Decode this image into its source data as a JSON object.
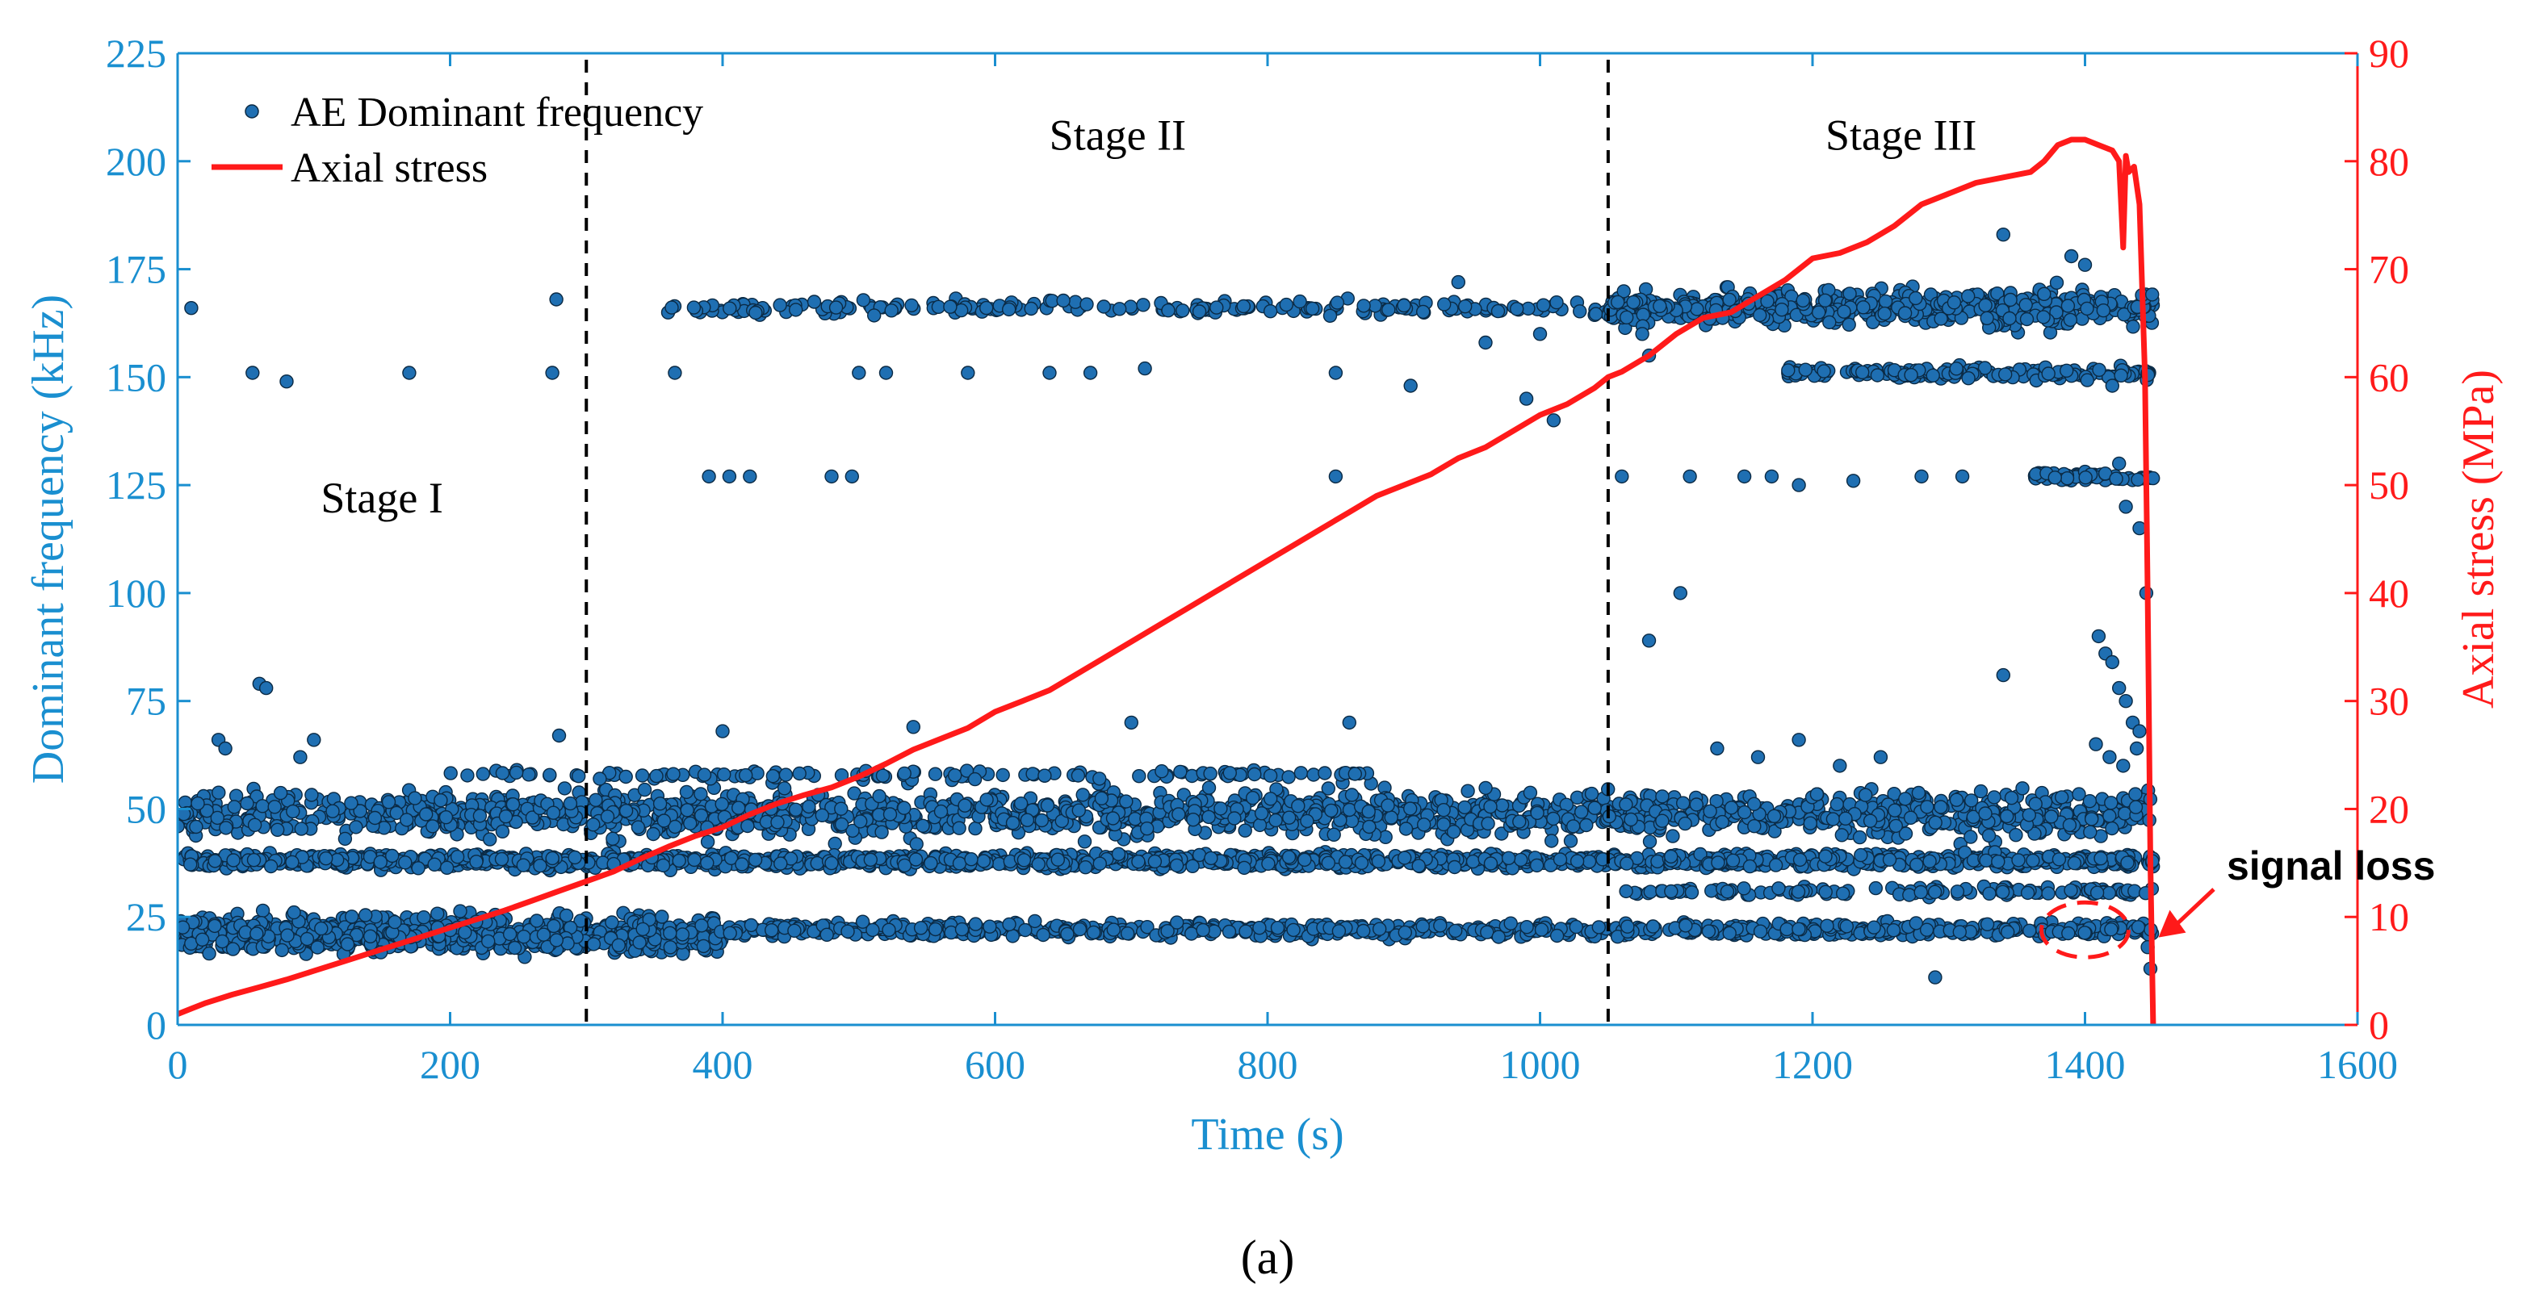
{
  "chart_data": {
    "type": "scatter+line",
    "caption": "(a)",
    "xlabel": "Time (s)",
    "ylabel_left": "Dominant frequency (kHz)",
    "ylabel_right": "Axial stress (MPa)",
    "xlim": [
      0,
      1600
    ],
    "ylim_left": [
      0,
      225
    ],
    "ylim_right": [
      0,
      90
    ],
    "xticks": [
      0,
      200,
      400,
      600,
      800,
      1000,
      1200,
      1400,
      1600
    ],
    "yticks_left": [
      0,
      25,
      50,
      75,
      100,
      125,
      150,
      175,
      200,
      225
    ],
    "yticks_right": [
      0,
      10,
      20,
      30,
      40,
      50,
      60,
      70,
      80,
      90
    ],
    "colors": {
      "scatter": "#1f6fb2",
      "stress": "#ff1a1a",
      "left_axis": "#1a8fd0",
      "right_axis": "#ff1a1a"
    },
    "legend": [
      {
        "label": "AE Dominant frequency",
        "kind": "marker"
      },
      {
        "label": "Axial stress",
        "kind": "line"
      }
    ],
    "stage_boundaries": [
      300,
      1050
    ],
    "stages": [
      {
        "label": "Stage I",
        "x": 150,
        "y": 122
      },
      {
        "label": "Stage II",
        "x": 690,
        "y": 206
      },
      {
        "label": "Stage III",
        "x": 1265,
        "y": 206
      }
    ],
    "annotation": {
      "label": "signal loss",
      "ellipse_x": 1400,
      "ellipse_y": 22,
      "target_x": 1448,
      "target_y": 24
    },
    "stress_series": {
      "x": [
        0,
        10,
        20,
        40,
        60,
        80,
        100,
        120,
        140,
        160,
        180,
        200,
        220,
        240,
        260,
        280,
        300,
        320,
        340,
        360,
        380,
        400,
        420,
        440,
        460,
        480,
        500,
        520,
        540,
        560,
        580,
        600,
        620,
        640,
        660,
        680,
        700,
        720,
        740,
        760,
        780,
        800,
        820,
        840,
        860,
        880,
        900,
        920,
        940,
        960,
        980,
        1000,
        1020,
        1040,
        1050,
        1060,
        1080,
        1100,
        1120,
        1140,
        1160,
        1180,
        1200,
        1220,
        1240,
        1260,
        1280,
        1300,
        1320,
        1340,
        1360,
        1370,
        1380,
        1390,
        1400,
        1410,
        1420,
        1425,
        1428,
        1430,
        1432,
        1436,
        1440,
        1444,
        1446,
        1448,
        1450
      ],
      "y": [
        1,
        1.5,
        2,
        2.8,
        3.5,
        4.2,
        5,
        5.8,
        6.6,
        7.4,
        8.2,
        9,
        9.8,
        10.6,
        11.5,
        12.4,
        13.3,
        14.2,
        15.4,
        16.5,
        17.5,
        18.3,
        19.5,
        20.5,
        21.3,
        22,
        23,
        24.2,
        25.5,
        26.5,
        27.5,
        29,
        30,
        31,
        32.5,
        34,
        35.5,
        37,
        38.5,
        40,
        41.5,
        43,
        44.5,
        46,
        47.5,
        49,
        50,
        51,
        52.5,
        53.5,
        55,
        56.5,
        57.5,
        59,
        60,
        60.5,
        62,
        64,
        65.5,
        66,
        67.5,
        69,
        71,
        71.5,
        72.5,
        74,
        76,
        77,
        78,
        78.5,
        79,
        80,
        81.5,
        82,
        82,
        81.5,
        81,
        80,
        72,
        80.5,
        79,
        79.5,
        76,
        60,
        40,
        15,
        0
      ]
    },
    "scatter_series": {
      "name": "AE Dominant frequency",
      "bands": [
        {
          "center": 49,
          "spread": 5,
          "x_range": [
            0,
            1450
          ],
          "count": 1500
        },
        {
          "center": 38,
          "spread": 1.5,
          "x_range": [
            0,
            1450
          ],
          "count": 1500
        },
        {
          "center": 21,
          "spread": 4,
          "x_range": [
            0,
            400
          ],
          "count": 700
        },
        {
          "center": 22,
          "spread": 1.5,
          "x_range": [
            400,
            1450
          ],
          "count": 700
        },
        {
          "center": 166,
          "spread": 1.5,
          "x_range": [
            360,
            1050
          ],
          "count": 200
        },
        {
          "center": 166,
          "spread": 4,
          "x_range": [
            1050,
            1450
          ],
          "count": 500
        },
        {
          "center": 151,
          "spread": 1.5,
          "x_range": [
            1180,
            1450
          ],
          "count": 150
        },
        {
          "center": 127,
          "spread": 1,
          "x_range": [
            1360,
            1450
          ],
          "count": 60
        },
        {
          "center": 58,
          "spread": 1,
          "x_range": [
            200,
            900
          ],
          "count": 120
        },
        {
          "center": 31,
          "spread": 1,
          "x_range": [
            1060,
            1450
          ],
          "count": 120
        }
      ],
      "points": [
        [
          10,
          166
        ],
        [
          55,
          151
        ],
        [
          80,
          149
        ],
        [
          170,
          151
        ],
        [
          275,
          151
        ],
        [
          278,
          168
        ],
        [
          365,
          151
        ],
        [
          390,
          127
        ],
        [
          405,
          127
        ],
        [
          420,
          127
        ],
        [
          480,
          127
        ],
        [
          495,
          127
        ],
        [
          500,
          151
        ],
        [
          520,
          151
        ],
        [
          580,
          151
        ],
        [
          640,
          151
        ],
        [
          670,
          151
        ],
        [
          710,
          152
        ],
        [
          850,
          151
        ],
        [
          850,
          127
        ],
        [
          905,
          148
        ],
        [
          940,
          172
        ],
        [
          990,
          145
        ],
        [
          1010,
          140
        ],
        [
          1060,
          127
        ],
        [
          1110,
          127
        ],
        [
          1150,
          127
        ],
        [
          1170,
          127
        ],
        [
          1190,
          125
        ],
        [
          1230,
          126
        ],
        [
          1280,
          127
        ],
        [
          1310,
          127
        ],
        [
          1340,
          183
        ],
        [
          1390,
          178
        ],
        [
          1400,
          176
        ],
        [
          1420,
          148
        ],
        [
          1425,
          130
        ],
        [
          1430,
          120
        ],
        [
          1440,
          115
        ],
        [
          1445,
          100
        ],
        [
          1103,
          100
        ],
        [
          1080,
          89
        ],
        [
          1340,
          81
        ],
        [
          1410,
          90
        ],
        [
          1415,
          86
        ],
        [
          1420,
          84
        ],
        [
          1425,
          78
        ],
        [
          1430,
          75
        ],
        [
          1435,
          70
        ],
        [
          1440,
          68
        ],
        [
          1408,
          65
        ],
        [
          1418,
          62
        ],
        [
          1428,
          60
        ],
        [
          1438,
          64
        ],
        [
          60,
          79
        ],
        [
          65,
          78
        ],
        [
          30,
          66
        ],
        [
          35,
          64
        ],
        [
          90,
          62
        ],
        [
          100,
          66
        ],
        [
          280,
          67
        ],
        [
          400,
          68
        ],
        [
          540,
          69
        ],
        [
          700,
          70
        ],
        [
          860,
          70
        ],
        [
          1130,
          64
        ],
        [
          1160,
          62
        ],
        [
          1190,
          66
        ],
        [
          1220,
          60
        ],
        [
          1250,
          62
        ],
        [
          1290,
          11
        ],
        [
          1448,
          13
        ],
        [
          1446,
          18
        ],
        [
          1000,
          160
        ],
        [
          960,
          158
        ],
        [
          1075,
          160
        ],
        [
          1080,
          155
        ]
      ]
    }
  }
}
